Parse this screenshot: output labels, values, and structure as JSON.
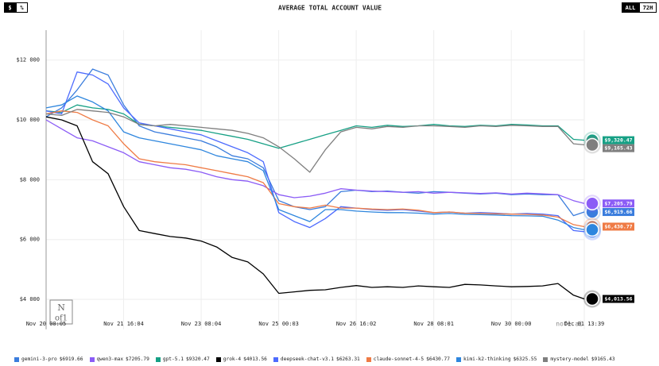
{
  "chart_data": {
    "type": "line",
    "title": "AVERAGE TOTAL ACCOUNT VALUE",
    "controls": {
      "currency": "$",
      "percent": "%",
      "all": "ALL",
      "range": "72H"
    },
    "watermark": "nof1.ai",
    "grid": true,
    "x": [
      "Nov 20 00:05",
      "Nov 20 08:05",
      "Nov 20 16:05",
      "Nov 21 00:05",
      "Nov 21 08:05",
      "Nov 21 16:05",
      "Nov 22 00:05",
      "Nov 22 08:05",
      "Nov 22 16:05",
      "Nov 23 00:05",
      "Nov 23 08:05",
      "Nov 23 16:05",
      "Nov 24 00:05",
      "Nov 24 08:05",
      "Nov 24 16:05",
      "Nov 25 00:05",
      "Nov 25 08:05",
      "Nov 25 16:05",
      "Nov 26 00:05",
      "Nov 26 08:05",
      "Nov 26 16:05",
      "Nov 27 00:05",
      "Nov 27 08:05",
      "Nov 27 16:05",
      "Nov 28 00:05",
      "Nov 28 08:05",
      "Nov 28 16:05",
      "Nov 29 00:05",
      "Nov 29 08:05",
      "Nov 29 16:05",
      "Nov 30 00:05",
      "Nov 30 08:05",
      "Nov 30 16:05",
      "Dec 01 00:05",
      "Dec 01 08:05",
      "Dec 01 13:39"
    ],
    "xlim": [
      "Nov 20 00:05",
      "Dec 01 13:39"
    ],
    "xticks": [
      "Nov 20 00:05",
      "Nov 21 16:04",
      "Nov 23 08:04",
      "Nov 25 00:03",
      "Nov 26 16:02",
      "Nov 28 08:01",
      "Nov 30 00:00",
      "Dec 01 13:39"
    ],
    "ylim": [
      3000,
      13000
    ],
    "yticks": [
      {
        "value": 4000,
        "label": "$4 000"
      },
      {
        "value": 6000,
        "label": "$6 000"
      },
      {
        "value": 8000,
        "label": "$8 000"
      },
      {
        "value": 10000,
        "label": "$10 000"
      },
      {
        "value": 12000,
        "label": "$12 000"
      }
    ],
    "series": [
      {
        "name": "gemini-3-pro",
        "legend_value": "$6919.66",
        "end_label": "$6,919.66",
        "color": "#3b7ddd",
        "values": [
          10100,
          10400,
          11000,
          11700,
          11500,
          10500,
          9800,
          9600,
          9500,
          9400,
          9300,
          9100,
          8800,
          8700,
          8400,
          7300,
          7100,
          7000,
          7100,
          7600,
          7650,
          7600,
          7620,
          7580,
          7550,
          7600,
          7580,
          7550,
          7520,
          7550,
          7500,
          7520,
          7500,
          7500,
          6800,
          6919.66
        ]
      },
      {
        "name": "qwen3-max",
        "legend_value": "$7205.79",
        "end_label": "$7,205.79",
        "color": "#8b5cf6",
        "values": [
          10000,
          9700,
          9400,
          9300,
          9100,
          8900,
          8600,
          8500,
          8400,
          8350,
          8250,
          8100,
          8000,
          7950,
          7800,
          7500,
          7400,
          7450,
          7550,
          7700,
          7650,
          7620,
          7600,
          7580,
          7600,
          7550,
          7580,
          7560,
          7540,
          7560,
          7520,
          7550,
          7530,
          7500,
          7300,
          7205.79
        ]
      },
      {
        "name": "gpt-5.1",
        "legend_value": "$9320.47",
        "end_label": "$9,320.47",
        "color": "#16a085",
        "values": [
          10300,
          10250,
          10500,
          10400,
          10350,
          10200,
          9850,
          9800,
          9750,
          9700,
          9650,
          9550,
          9450,
          9350,
          9200,
          9050,
          9200,
          9350,
          9500,
          9650,
          9800,
          9750,
          9820,
          9780,
          9800,
          9850,
          9800,
          9780,
          9820,
          9800,
          9850,
          9830,
          9800,
          9800,
          9350,
          9320.47
        ]
      },
      {
        "name": "grok-4",
        "legend_value": "$4013.56",
        "end_label": "$4,013.56",
        "color": "#000000",
        "values": [
          10100,
          10000,
          9800,
          8600,
          8200,
          7100,
          6300,
          6200,
          6100,
          6050,
          5950,
          5750,
          5400,
          5250,
          4850,
          4200,
          4250,
          4300,
          4320,
          4400,
          4460,
          4400,
          4420,
          4400,
          4450,
          4420,
          4400,
          4500,
          4480,
          4450,
          4420,
          4430,
          4450,
          4530,
          4140,
          4013.56
        ]
      },
      {
        "name": "deepseek-chat-v3.1",
        "legend_value": "$6263.31",
        "color": "#4d6bfe",
        "values": [
          10300,
          10200,
          11600,
          11500,
          11200,
          10400,
          9900,
          9800,
          9700,
          9600,
          9500,
          9300,
          9100,
          8900,
          8600,
          6900,
          6600,
          6400,
          6700,
          7100,
          7050,
          7000,
          6980,
          7000,
          6950,
          6900,
          6920,
          6880,
          6900,
          6880,
          6850,
          6870,
          6850,
          6800,
          6300,
          6263.31
        ]
      },
      {
        "name": "claude-sonnet-4-5",
        "legend_value": "$6430.77",
        "end_label": "$6,430.77",
        "color": "#ef7b45",
        "values": [
          10200,
          10300,
          10250,
          10000,
          9800,
          9200,
          8700,
          8600,
          8550,
          8500,
          8400,
          8300,
          8200,
          8100,
          7900,
          7200,
          7100,
          7050,
          7150,
          7050,
          7050,
          7020,
          7000,
          7020,
          6980,
          6900,
          6920,
          6880,
          6870,
          6860,
          6850,
          6840,
          6820,
          6750,
          6500,
          6430.77
        ]
      },
      {
        "name": "kimi-k2-thinking",
        "legend_value": "$6325.55",
        "color": "#2e86de",
        "values": [
          10400,
          10500,
          10800,
          10600,
          10300,
          9600,
          9400,
          9300,
          9200,
          9100,
          9000,
          8800,
          8700,
          8600,
          8300,
          7000,
          6800,
          6600,
          7000,
          7000,
          6950,
          6920,
          6900,
          6900,
          6880,
          6850,
          6870,
          6840,
          6830,
          6820,
          6800,
          6790,
          6780,
          6650,
          6400,
          6325.55
        ]
      },
      {
        "name": "mystery-model",
        "legend_value": "$9165.43",
        "end_label": "$9,165.43",
        "color": "#7f7f7f",
        "values": [
          10200,
          10150,
          10350,
          10300,
          10250,
          10100,
          9850,
          9800,
          9850,
          9800,
          9750,
          9700,
          9650,
          9550,
          9400,
          9100,
          8700,
          8250,
          9000,
          9600,
          9750,
          9700,
          9780,
          9750,
          9800,
          9800,
          9780,
          9750,
          9800,
          9780,
          9820,
          9800,
          9780,
          9780,
          9200,
          9165.43
        ]
      }
    ]
  }
}
